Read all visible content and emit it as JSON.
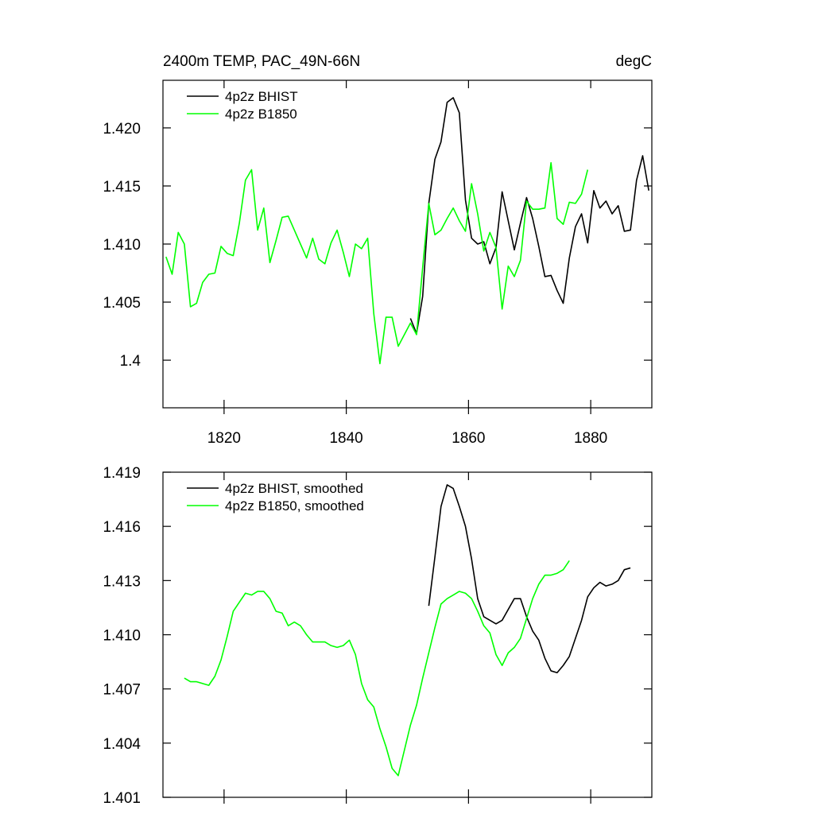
{
  "chart_data": [
    {
      "type": "line",
      "title": "2400m TEMP, PAC_49N-66N",
      "units": "degC",
      "xlim": [
        1810,
        1890
      ],
      "xticks": [
        1820,
        1840,
        1860,
        1880
      ],
      "xtick_labels": true,
      "ylim": [
        1.3959,
        1.4241
      ],
      "yticks": [
        1.4,
        1.405,
        {
          "value": 1.41,
          "label": "1.410"
        },
        1.415,
        {
          "value": 1.42,
          "label": "1.420"
        }
      ],
      "series": [
        {
          "name": "4p2z BHIST",
          "color": "#000000",
          "x": [
            1850.5,
            1851.5,
            1852.5,
            1853.5,
            1854.5,
            1855.5,
            1856.5,
            1857.5,
            1858.5,
            1859.5,
            1860.5,
            1861.5,
            1862.5,
            1863.5,
            1864.5,
            1865.5,
            1866.5,
            1867.5,
            1868.5,
            1869.5,
            1870.5,
            1871.5,
            1872.5,
            1873.5,
            1874.5,
            1875.5,
            1876.5,
            1877.5,
            1878.5,
            1879.5,
            1880.5,
            1881.5,
            1882.5,
            1883.5,
            1884.5,
            1885.5,
            1886.5,
            1887.5,
            1888.5,
            1889.5
          ],
          "values": [
            1.4036,
            1.4023,
            1.4055,
            1.4135,
            1.4173,
            1.4188,
            1.4222,
            1.4226,
            1.4213,
            1.4138,
            1.4105,
            1.41,
            1.4102,
            1.4083,
            1.4097,
            1.4145,
            1.412,
            1.4095,
            1.4118,
            1.414,
            1.4122,
            1.4098,
            1.4072,
            1.4073,
            1.406,
            1.4049,
            1.4088,
            1.4115,
            1.4126,
            1.4101,
            1.4146,
            1.4131,
            1.4137,
            1.4126,
            1.4133,
            1.4111,
            1.4112,
            1.4155,
            1.4176,
            1.4146
          ]
        },
        {
          "name": "4p2z B1850",
          "color": "#00ff00",
          "x": [
            1810.5,
            1811.5,
            1812.5,
            1813.5,
            1814.5,
            1815.5,
            1816.5,
            1817.5,
            1818.5,
            1819.5,
            1820.5,
            1821.5,
            1822.5,
            1823.5,
            1824.5,
            1825.5,
            1826.5,
            1827.5,
            1828.5,
            1829.5,
            1830.5,
            1831.5,
            1832.5,
            1833.5,
            1834.5,
            1835.5,
            1836.5,
            1837.5,
            1838.5,
            1839.5,
            1840.5,
            1841.5,
            1842.5,
            1843.5,
            1844.5,
            1845.5,
            1846.5,
            1847.5,
            1848.5,
            1849.5,
            1850.5,
            1851.5,
            1852.5,
            1853.5,
            1854.5,
            1855.5,
            1856.5,
            1857.5,
            1858.5,
            1859.5,
            1860.5,
            1861.5,
            1862.5,
            1863.5,
            1864.5,
            1865.5,
            1866.5,
            1867.5,
            1868.5,
            1869.5,
            1870.5,
            1871.5,
            1872.5,
            1873.5,
            1874.5,
            1875.5,
            1876.5,
            1877.5,
            1878.5,
            1879.5
          ],
          "values": [
            1.4089,
            1.4074,
            1.411,
            1.41,
            1.4046,
            1.4049,
            1.4067,
            1.4074,
            1.4075,
            1.4098,
            1.4092,
            1.409,
            1.4118,
            1.4155,
            1.4164,
            1.4112,
            1.4131,
            1.4084,
            1.4103,
            1.4123,
            1.4124,
            1.4112,
            1.41,
            1.4088,
            1.4105,
            1.4087,
            1.4083,
            1.4101,
            1.4112,
            1.4093,
            1.4072,
            1.41,
            1.4096,
            1.4105,
            1.404,
            1.3997,
            1.4037,
            1.4037,
            1.4012,
            1.4022,
            1.4032,
            1.4022,
            1.408,
            1.4135,
            1.4108,
            1.4112,
            1.4122,
            1.4131,
            1.412,
            1.4111,
            1.4152,
            1.4126,
            1.4094,
            1.411,
            1.4097,
            1.4044,
            1.4081,
            1.4072,
            1.4086,
            1.4137,
            1.413,
            1.413,
            1.4131,
            1.417,
            1.4122,
            1.4117,
            1.4136,
            1.4135,
            1.4143,
            1.4164
          ]
        }
      ]
    },
    {
      "type": "line",
      "xlim": [
        1810,
        1890
      ],
      "xticks": [
        1820,
        1840,
        1860,
        1880
      ],
      "xtick_labels": false,
      "ylim": [
        1.401,
        1.419
      ],
      "yticks": [
        1.401,
        1.404,
        1.407,
        {
          "value": 1.41,
          "label": "1.410"
        },
        1.413,
        1.416,
        1.419
      ],
      "series": [
        {
          "name": "4p2z BHIST, smoothed",
          "color": "#000000",
          "x": [
            1853.5,
            1854.5,
            1855.5,
            1856.5,
            1857.5,
            1858.5,
            1859.5,
            1860.5,
            1861.5,
            1862.5,
            1863.5,
            1864.5,
            1865.5,
            1866.5,
            1867.5,
            1868.5,
            1869.5,
            1870.5,
            1871.5,
            1872.5,
            1873.5,
            1874.5,
            1875.5,
            1876.5,
            1877.5,
            1878.5,
            1879.5,
            1880.5,
            1881.5,
            1882.5,
            1883.5,
            1884.5,
            1885.5,
            1886.5
          ],
          "values": [
            1.4116,
            1.4143,
            1.4171,
            1.4183,
            1.4181,
            1.4171,
            1.416,
            1.4142,
            1.412,
            1.411,
            1.4108,
            1.4106,
            1.4108,
            1.4114,
            1.412,
            1.412,
            1.411,
            1.4102,
            1.4097,
            1.4087,
            1.408,
            1.4079,
            1.4083,
            1.4088,
            1.4098,
            1.4108,
            1.4121,
            1.4126,
            1.4129,
            1.4127,
            1.4128,
            1.413,
            1.4136,
            1.4137
          ]
        },
        {
          "name": "4p2z B1850, smoothed",
          "color": "#00ff00",
          "x": [
            1813.5,
            1814.5,
            1815.5,
            1816.5,
            1817.5,
            1818.5,
            1819.5,
            1820.5,
            1821.5,
            1822.5,
            1823.5,
            1824.5,
            1825.5,
            1826.5,
            1827.5,
            1828.5,
            1829.5,
            1830.5,
            1831.5,
            1832.5,
            1833.5,
            1834.5,
            1835.5,
            1836.5,
            1837.5,
            1838.5,
            1839.5,
            1840.5,
            1841.5,
            1842.5,
            1843.5,
            1844.5,
            1845.5,
            1846.5,
            1847.5,
            1848.5,
            1849.5,
            1850.5,
            1851.5,
            1852.5,
            1853.5,
            1854.5,
            1855.5,
            1856.5,
            1857.5,
            1858.5,
            1859.5,
            1860.5,
            1861.5,
            1862.5,
            1863.5,
            1864.5,
            1865.5,
            1866.5,
            1867.5,
            1868.5,
            1869.5,
            1870.5,
            1871.5,
            1872.5,
            1873.5,
            1874.5,
            1875.5,
            1876.5
          ],
          "values": [
            1.4076,
            1.4074,
            1.4074,
            1.4073,
            1.4072,
            1.4077,
            1.4086,
            1.4099,
            1.4113,
            1.4118,
            1.4123,
            1.4122,
            1.4124,
            1.4124,
            1.412,
            1.4113,
            1.4112,
            1.4105,
            1.4107,
            1.4105,
            1.41,
            1.4096,
            1.4096,
            1.4096,
            1.4094,
            1.4093,
            1.4094,
            1.4097,
            1.4089,
            1.4073,
            1.4064,
            1.406,
            1.4048,
            1.4038,
            1.4026,
            1.4022,
            1.4036,
            1.405,
            1.4061,
            1.4076,
            1.409,
            1.4104,
            1.4117,
            1.412,
            1.4122,
            1.4124,
            1.4123,
            1.412,
            1.4113,
            1.4105,
            1.4101,
            1.4089,
            1.4083,
            1.409,
            1.4093,
            1.4098,
            1.4109,
            1.412,
            1.4128,
            1.4133,
            1.4133,
            1.4134,
            1.4136,
            1.4141
          ]
        }
      ]
    }
  ]
}
